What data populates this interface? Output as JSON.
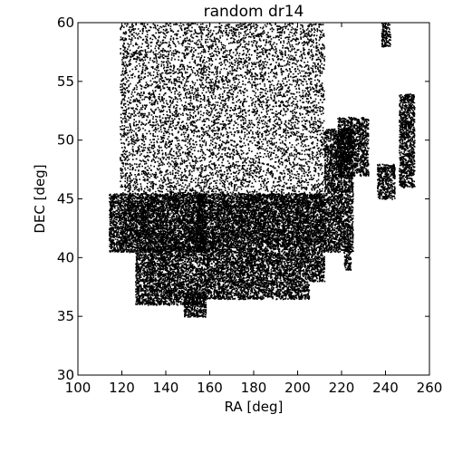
{
  "chart_data": {
    "type": "scatter",
    "title": "random dr14",
    "xlabel": "RA [deg]",
    "ylabel": "DEC [deg]",
    "xlim": [
      100,
      260
    ],
    "ylim": [
      30,
      60
    ],
    "xticks": [
      100,
      120,
      140,
      160,
      180,
      200,
      220,
      240,
      260
    ],
    "yticks": [
      30,
      35,
      40,
      45,
      50,
      55,
      60
    ],
    "grid": false,
    "legend": "none",
    "marker_color": "#000000",
    "series": [
      {
        "footprint_regions": [
          {
            "ra": [
              119,
              212
            ],
            "dec": [
              41,
              60
            ]
          },
          {
            "ra": [
              114,
              158
            ],
            "dec": [
              40.5,
              45.5
            ]
          },
          {
            "ra": [
              126,
              158
            ],
            "dec": [
              36,
              41
            ]
          },
          {
            "ra": [
              154,
              212
            ],
            "dec": [
              40.5,
              45.5
            ]
          },
          {
            "ra": [
              158,
              205
            ],
            "dec": [
              36.5,
              40.5
            ]
          },
          {
            "ra": [
              205,
              212
            ],
            "dec": [
              38,
              40.5
            ]
          },
          {
            "ra": [
              148,
              158
            ],
            "dec": [
              35,
              37
            ]
          },
          {
            "ra": [
              212,
              225
            ],
            "dec": [
              40.5,
              51
            ]
          },
          {
            "ra": [
              218,
              232
            ],
            "dec": [
              47,
              52
            ]
          },
          {
            "ra": [
              236,
              244
            ],
            "dec": [
              45,
              48
            ]
          },
          {
            "ra": [
              246,
              253
            ],
            "dec": [
              46,
              54
            ]
          },
          {
            "ra": [
              238,
              242
            ],
            "dec": [
              58,
              60
            ]
          },
          {
            "ra": [
              221,
              224
            ],
            "dec": [
              39,
              41
            ]
          }
        ]
      }
    ]
  }
}
